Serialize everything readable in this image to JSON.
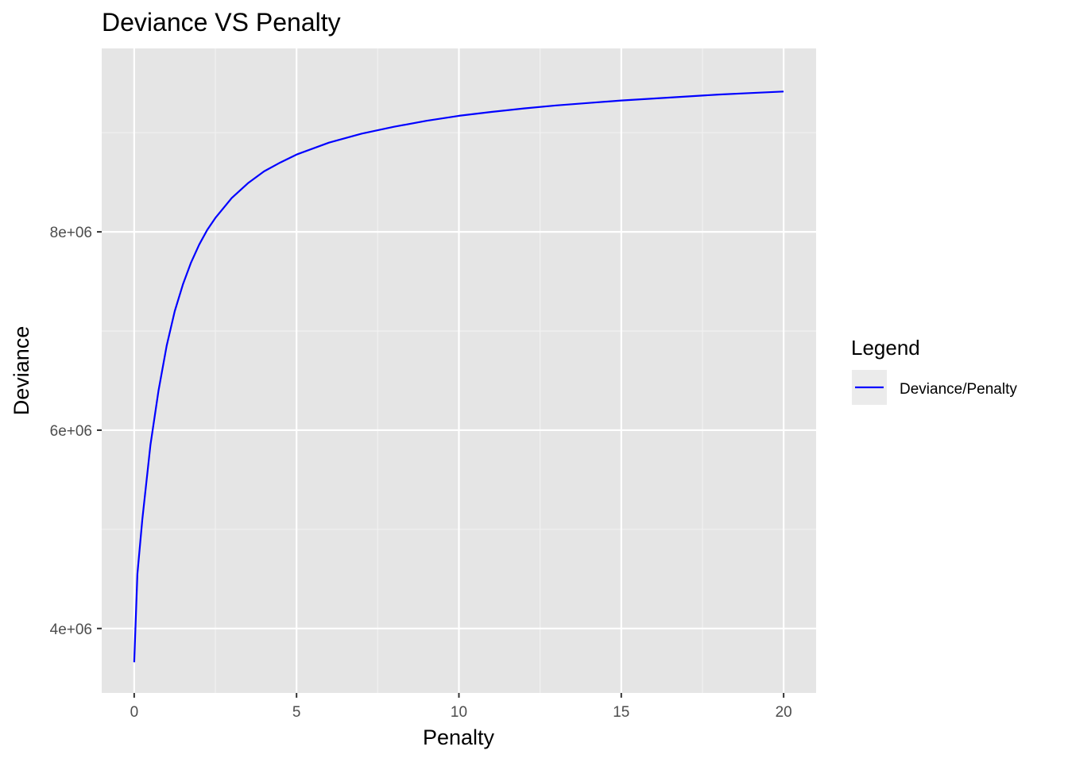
{
  "chart_data": {
    "type": "line",
    "title": "Deviance VS Penalty",
    "xlabel": "Penalty",
    "ylabel": "Deviance",
    "xlim": [
      -1,
      21
    ],
    "ylim": [
      3350000,
      9850000
    ],
    "x_ticks": [
      0,
      5,
      10,
      15,
      20
    ],
    "x_tick_labels": [
      "0",
      "5",
      "10",
      "15",
      "20"
    ],
    "y_ticks": [
      4000000,
      6000000,
      8000000
    ],
    "y_tick_labels": [
      "4e+06",
      "6e+06",
      "8e+06"
    ],
    "grid": true,
    "legend": {
      "title": "Legend",
      "position": "right"
    },
    "series": [
      {
        "name": "Deviance/Penalty",
        "color": "#0000ff",
        "x": [
          0,
          0.1,
          0.25,
          0.5,
          0.75,
          1,
          1.25,
          1.5,
          1.75,
          2,
          2.25,
          2.5,
          3,
          3.5,
          4,
          4.5,
          5,
          6,
          7,
          8,
          9,
          10,
          11,
          12,
          13,
          14,
          15,
          16,
          17,
          18,
          19,
          20
        ],
        "y": [
          3660000,
          4550000,
          5100000,
          5850000,
          6400000,
          6850000,
          7200000,
          7470000,
          7690000,
          7870000,
          8020000,
          8140000,
          8340000,
          8490000,
          8610000,
          8700000,
          8780000,
          8900000,
          8990000,
          9060000,
          9120000,
          9170000,
          9210000,
          9245000,
          9275000,
          9300000,
          9325000,
          9345000,
          9365000,
          9385000,
          9400000,
          9415000
        ]
      }
    ]
  }
}
